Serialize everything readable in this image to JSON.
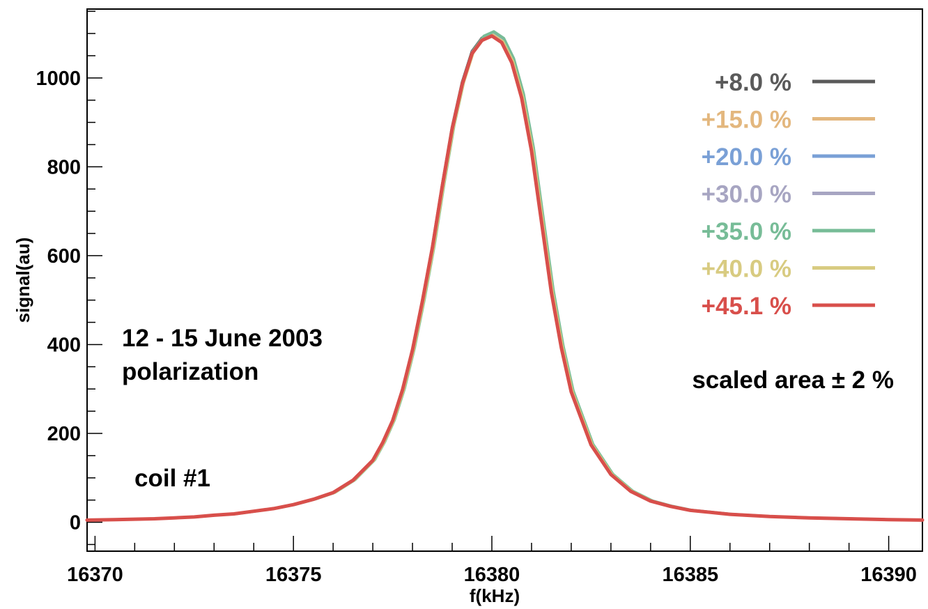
{
  "chart_data": {
    "type": "line",
    "title": "",
    "xlabel": "f(kHz)",
    "ylabel": "signal(au)",
    "xlim": [
      16369.8,
      16390.85
    ],
    "ylim": [
      -65,
      1155
    ],
    "x_ticks": [
      16370,
      16375,
      16380,
      16385,
      16390
    ],
    "x_tick_labels": [
      "16370",
      "16375",
      "16380",
      "16385",
      "16390"
    ],
    "y_ticks": [
      0,
      200,
      400,
      600,
      800,
      1000
    ],
    "y_tick_labels": [
      "0",
      "200",
      "400",
      "600",
      "800",
      "1000"
    ],
    "grid": false,
    "legend_position": "top-right",
    "annotations": {
      "date": "12 - 15 June 2003",
      "quantity": "polarization",
      "coil": "coil #1",
      "scaled_area": "scaled area ± 2 %"
    },
    "x": [
      16369.8,
      16370.5,
      16371,
      16371.5,
      16372,
      16372.5,
      16373,
      16373.5,
      16374,
      16374.5,
      16375,
      16375.5,
      16376,
      16376.5,
      16377,
      16377.25,
      16377.5,
      16377.75,
      16378,
      16378.25,
      16378.5,
      16378.75,
      16379,
      16379.25,
      16379.5,
      16379.75,
      16380,
      16380.25,
      16380.5,
      16380.75,
      16381,
      16381.25,
      16381.5,
      16381.75,
      16382,
      16382.5,
      16383,
      16383.5,
      16384,
      16384.5,
      16385,
      16386,
      16387,
      16388,
      16389,
      16390,
      16390.85
    ],
    "series": [
      {
        "name": "+8.0 %",
        "color": "#5a5a5a",
        "dx": 0.0,
        "scale": 1.0
      },
      {
        "name": "+15.0 %",
        "color": "#e3b77e",
        "dx": 0.02,
        "scale": 0.998
      },
      {
        "name": "+20.0 %",
        "color": "#7aa0d6",
        "dx": 0.04,
        "scale": 1.002
      },
      {
        "name": "+30.0 %",
        "color": "#a7a5c2",
        "dx": 0.01,
        "scale": 0.999
      },
      {
        "name": "+35.0 %",
        "color": "#77bc97",
        "dx": 0.05,
        "scale": 1.004
      },
      {
        "name": "+40.0 %",
        "color": "#d8cb81",
        "dx": 0.03,
        "scale": 0.997
      },
      {
        "name": "+45.1 %",
        "color": "#d84f4b",
        "dx": 0.0,
        "scale": 0.995
      }
    ],
    "values": [
      5,
      6,
      7,
      8,
      10,
      12,
      16,
      19,
      25,
      31,
      40,
      52,
      67,
      95,
      140,
      180,
      230,
      300,
      390,
      500,
      620,
      760,
      890,
      990,
      1060,
      1090,
      1100,
      1085,
      1040,
      960,
      840,
      680,
      520,
      395,
      295,
      175,
      108,
      70,
      48,
      36,
      27,
      18,
      13,
      10,
      8,
      6,
      5
    ]
  }
}
